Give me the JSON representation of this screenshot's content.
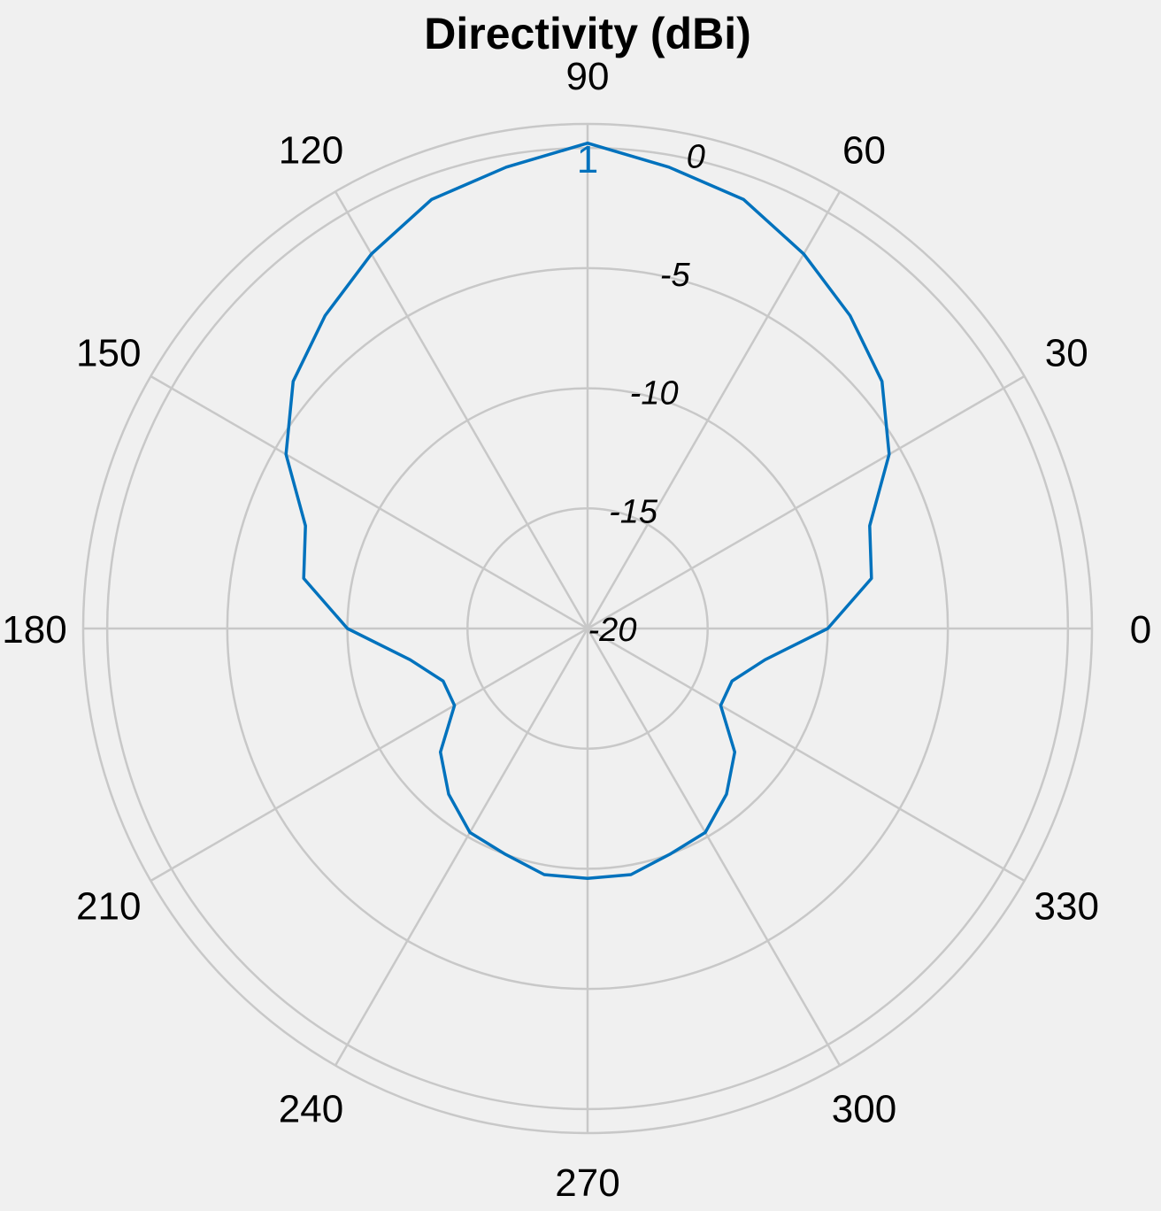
{
  "chart_data": {
    "type": "polar-line",
    "title": "Directivity (dBi)",
    "angle_unit": "deg",
    "angle_ticks": [
      0,
      30,
      60,
      90,
      120,
      150,
      180,
      210,
      240,
      270,
      300,
      330
    ],
    "angle_tick_labels": [
      "0",
      "30",
      "60",
      "90",
      "120",
      "150",
      "180",
      "210",
      "240",
      "270",
      "300",
      "330"
    ],
    "rlim": [
      -20,
      0
    ],
    "radial_ticks": [
      -20,
      -15,
      -10,
      -5,
      0
    ],
    "radial_tick_labels": [
      "-20",
      "-15",
      "-10",
      "-5",
      "0"
    ],
    "grid": true,
    "series": [
      {
        "name": "1",
        "color": "#0072BD",
        "angles": [
          0,
          10,
          20,
          30,
          40,
          50,
          60,
          70,
          80,
          90,
          100,
          110,
          120,
          130,
          140,
          150,
          160,
          170,
          180,
          190,
          200,
          210,
          220,
          230,
          240,
          250,
          260,
          270,
          280,
          290,
          300,
          310,
          320,
          330,
          340,
          350
        ],
        "values": [
          -10,
          -8,
          -7.5,
          -5.5,
          -4,
          -3,
          -2,
          -1,
          -0.5,
          0.2,
          -0.5,
          -1,
          -2,
          -3,
          -4,
          -5.5,
          -7.5,
          -8,
          -10,
          -12.5,
          -13.6,
          -13.6,
          -12,
          -11,
          -10.2,
          -10,
          -9.6,
          -9.6,
          -9.6,
          -10,
          -10.2,
          -11,
          -12,
          -13.6,
          -13.6,
          -12.5
        ]
      }
    ]
  }
}
